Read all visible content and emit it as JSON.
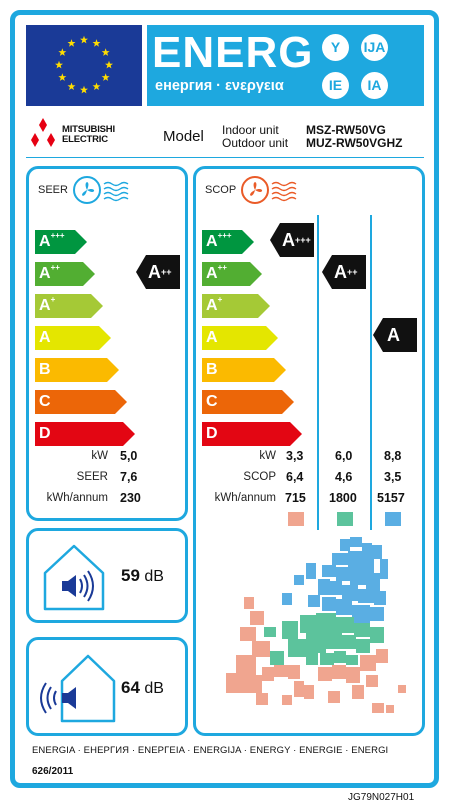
{
  "header": {
    "title": "ENERG",
    "subtitle": "енергия · ενεργεια",
    "languages": [
      "Y",
      "IJA",
      "IE",
      "IA"
    ]
  },
  "brand": {
    "name_line1": "MITSUBISHI",
    "name_line2": "ELECTRIC"
  },
  "model": {
    "label": "Model",
    "indoor_label": "Indoor unit",
    "outdoor_label": "Outdoor unit",
    "indoor_value": "MSZ-RW50VG",
    "outdoor_value": "MUZ-RW50VGHZ"
  },
  "cooling": {
    "title": "SEER",
    "scale": [
      {
        "letter": "A",
        "plus": "+++",
        "color": "#009640"
      },
      {
        "letter": "A",
        "plus": "++",
        "color": "#52ae32"
      },
      {
        "letter": "A",
        "plus": "+",
        "color": "#a5c936"
      },
      {
        "letter": "A",
        "plus": "",
        "color": "#e4e600"
      },
      {
        "letter": "B",
        "plus": "",
        "color": "#fbba00"
      },
      {
        "letter": "C",
        "plus": "",
        "color": "#ec6608"
      },
      {
        "letter": "D",
        "plus": "",
        "color": "#e30613"
      }
    ],
    "rating": {
      "letter": "A",
      "plus": "++"
    },
    "rows": [
      {
        "label": "kW",
        "value": "5,0"
      },
      {
        "label": "SEER",
        "value": "7,6"
      },
      {
        "label": "kWh/annum",
        "value": "230"
      }
    ]
  },
  "heating": {
    "title": "SCOP",
    "ratings": [
      {
        "letter": "A",
        "plus": "+++"
      },
      {
        "letter": "A",
        "plus": "++"
      },
      {
        "letter": "A",
        "plus": ""
      }
    ],
    "labels": [
      "kW",
      "SCOP",
      "kWh/annum"
    ],
    "columns": [
      {
        "values": [
          "3,3",
          "6,4",
          "715"
        ],
        "color": "#f0a58f"
      },
      {
        "values": [
          "6,0",
          "4,6",
          "1800"
        ],
        "color": "#5cc39c"
      },
      {
        "values": [
          "8,8",
          "3,5",
          "5157"
        ],
        "color": "#5aaee3"
      }
    ]
  },
  "noise": {
    "indoor_value": "59",
    "outdoor_value": "64",
    "unit": "dB"
  },
  "footer": {
    "languages": "ENERGIA · ЕНЕРГИЯ · ΕΝΕΡΓΕΙΑ · ENERGIJA · ENERGY · ENERGIE · ENERGI",
    "regulation": "626/2011",
    "code": "JG79N027H01"
  },
  "colors": {
    "frame": "#1ea8df",
    "eu_blue": "#1a3a97",
    "eu_star": "#ffdd00"
  },
  "icons": [
    "eu-flag-icon",
    "mitsubishi-logo-icon",
    "fan-cool-icon",
    "fan-heat-icon",
    "speaker-indoor-icon",
    "speaker-outdoor-icon",
    "europe-map-icon"
  ]
}
